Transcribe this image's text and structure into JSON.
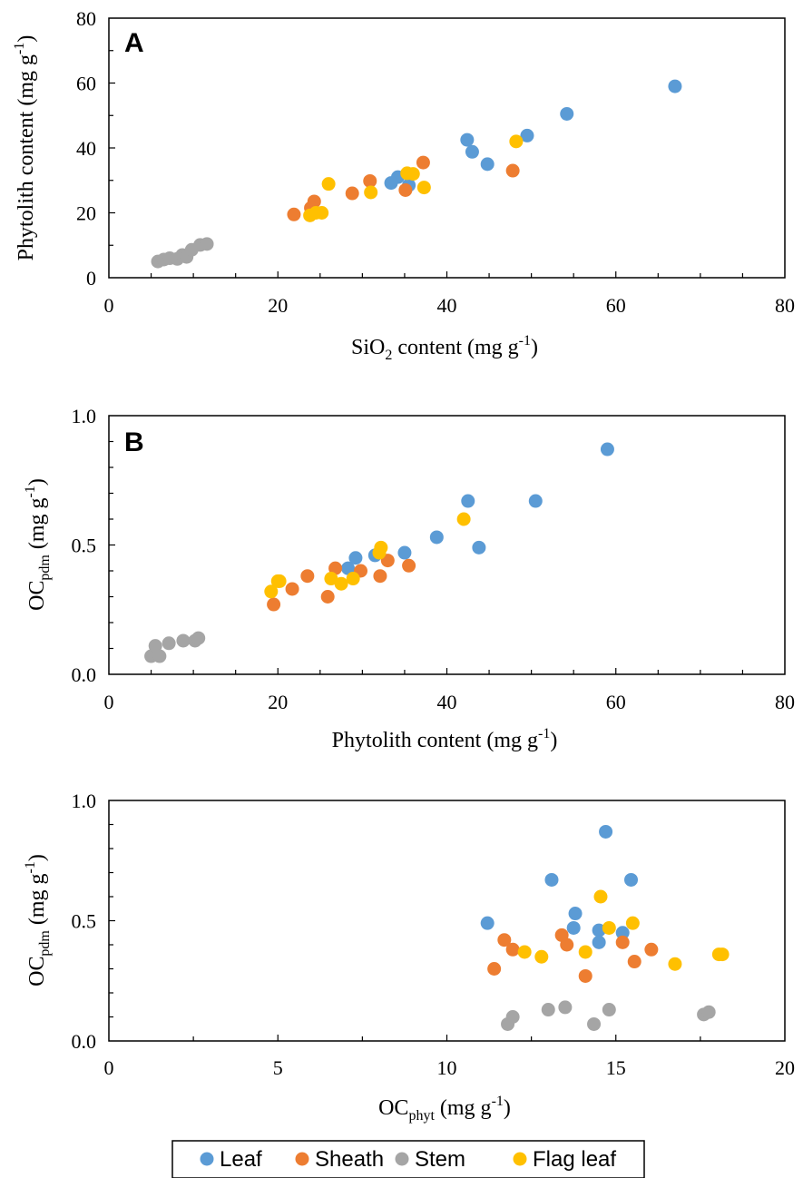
{
  "chart_data": [
    {
      "type": "scatter",
      "panel_label": "A",
      "xlabel": {
        "main": "SiO",
        "sub": "2",
        "rest": " content (mg g",
        "sup": "-1",
        "end": ")"
      },
      "ylabel": {
        "main": "Phytolith content (mg g",
        "sup": "-1",
        "end": ")"
      },
      "xlim": [
        0,
        80
      ],
      "ylim": [
        0,
        80
      ],
      "xticks": [
        0,
        20,
        40,
        60,
        80
      ],
      "yticks": [
        0,
        20,
        40,
        60,
        80
      ],
      "xtick_labels": [
        "0",
        "20",
        "40",
        "60",
        "80"
      ],
      "ytick_labels": [
        "0",
        "20",
        "40",
        "60",
        "80"
      ],
      "x_minor_step": 5,
      "y_minor_step": 10,
      "grid": false,
      "series": [
        {
          "name": "Leaf",
          "color": "#5B9BD5",
          "points": [
            [
              67,
              59
            ],
            [
              54.2,
              50.5
            ],
            [
              49.5,
              43.8
            ],
            [
              42.4,
              42.5
            ],
            [
              43,
              38.8
            ],
            [
              44.8,
              35
            ],
            [
              34.2,
              31
            ],
            [
              33.4,
              29.2
            ],
            [
              35.5,
              28.5
            ]
          ]
        },
        {
          "name": "Sheath",
          "color": "#ED7D31",
          "points": [
            [
              37.2,
              35.5
            ],
            [
              47.8,
              33
            ],
            [
              30.9,
              29.8
            ],
            [
              28.8,
              26
            ],
            [
              35.1,
              27
            ],
            [
              24.3,
              23.5
            ],
            [
              23.9,
              21.5
            ],
            [
              21.9,
              19.5
            ]
          ]
        },
        {
          "name": "Stem",
          "color": "#A5A5A5",
          "points": [
            [
              5.8,
              5
            ],
            [
              6.5,
              5.6
            ],
            [
              7.2,
              6
            ],
            [
              8.1,
              5.8
            ],
            [
              8.7,
              7
            ],
            [
              9.2,
              6.4
            ],
            [
              9.8,
              8.6
            ],
            [
              10.8,
              10.1
            ],
            [
              11.6,
              10.4
            ]
          ]
        },
        {
          "name": "Flag leaf",
          "color": "#FFC000",
          "points": [
            [
              48.2,
              42
            ],
            [
              35.3,
              32.2
            ],
            [
              36,
              32
            ],
            [
              26,
              28.9
            ],
            [
              37.3,
              27.8
            ],
            [
              31,
              26.3
            ],
            [
              23.8,
              19.2
            ],
            [
              24.5,
              20
            ],
            [
              25.2,
              20
            ]
          ]
        }
      ]
    },
    {
      "type": "scatter",
      "panel_label": "B",
      "xlabel": {
        "main": "Phytolith content (mg g",
        "sup": "-1",
        "end": ")"
      },
      "ylabel": {
        "main": "OC",
        "sub": "pdm",
        "rest": " (mg g",
        "sup": "-1",
        "end": ")"
      },
      "xlim": [
        0,
        80
      ],
      "ylim": [
        0,
        1
      ],
      "xticks": [
        0,
        20,
        40,
        60,
        80
      ],
      "yticks": [
        0,
        0.5,
        1
      ],
      "xtick_labels": [
        "0",
        "20",
        "40",
        "60",
        "80"
      ],
      "ytick_labels": [
        "0.0",
        "0.5",
        "1.0"
      ],
      "x_minor_step": 5,
      "y_minor_step": 0.1,
      "grid": false,
      "series": [
        {
          "name": "Leaf",
          "color": "#5B9BD5",
          "points": [
            [
              59,
              0.87
            ],
            [
              42.5,
              0.67
            ],
            [
              50.5,
              0.67
            ],
            [
              38.8,
              0.53
            ],
            [
              43.8,
              0.49
            ],
            [
              35,
              0.47
            ],
            [
              31.5,
              0.46
            ],
            [
              29.2,
              0.45
            ],
            [
              28.3,
              0.41
            ]
          ]
        },
        {
          "name": "Sheath",
          "color": "#ED7D31",
          "points": [
            [
              35.5,
              0.42
            ],
            [
              33,
              0.44
            ],
            [
              26.8,
              0.41
            ],
            [
              29.8,
              0.4
            ],
            [
              32.1,
              0.38
            ],
            [
              23.5,
              0.38
            ],
            [
              21.7,
              0.33
            ],
            [
              25.9,
              0.3
            ],
            [
              19.5,
              0.27
            ]
          ]
        },
        {
          "name": "Stem",
          "color": "#A5A5A5",
          "points": [
            [
              5,
              0.07
            ],
            [
              5.5,
              0.11
            ],
            [
              6,
              0.07
            ],
            [
              7.1,
              0.12
            ],
            [
              8.8,
              0.13
            ],
            [
              10.2,
              0.13
            ],
            [
              10.6,
              0.14
            ]
          ]
        },
        {
          "name": "Flag leaf",
          "color": "#FFC000",
          "points": [
            [
              42,
              0.6
            ],
            [
              32.2,
              0.49
            ],
            [
              32,
              0.47
            ],
            [
              27.5,
              0.35
            ],
            [
              28.9,
              0.37
            ],
            [
              26.3,
              0.37
            ],
            [
              19.2,
              0.32
            ],
            [
              20,
              0.36
            ],
            [
              20.2,
              0.36
            ]
          ]
        }
      ]
    },
    {
      "type": "scatter",
      "panel_label": "",
      "xlabel": {
        "main": "OC",
        "sub": "phyt",
        "rest": " (mg g",
        "sup": "-1",
        "end": ")"
      },
      "ylabel": {
        "main": "OC",
        "sub": "pdm",
        "rest": " (mg g",
        "sup": "-1",
        "end": ")"
      },
      "xlim": [
        0,
        20
      ],
      "ylim": [
        0,
        1
      ],
      "xticks": [
        0,
        5,
        10,
        15,
        20
      ],
      "yticks": [
        0,
        0.5,
        1
      ],
      "xtick_labels": [
        "0",
        "5",
        "10",
        "15",
        "20"
      ],
      "ytick_labels": [
        "0.0",
        "0.5",
        "1.0"
      ],
      "x_minor_step": 2.5,
      "y_minor_step": 0.1,
      "grid": false,
      "series": [
        {
          "name": "Leaf",
          "color": "#5B9BD5",
          "points": [
            [
              14.7,
              0.87
            ],
            [
              13.1,
              0.67
            ],
            [
              15.45,
              0.67
            ],
            [
              13.8,
              0.53
            ],
            [
              11.2,
              0.49
            ],
            [
              13.75,
              0.47
            ],
            [
              14.5,
              0.46
            ],
            [
              15.2,
              0.45
            ],
            [
              14.5,
              0.41
            ]
          ]
        },
        {
          "name": "Sheath",
          "color": "#ED7D31",
          "points": [
            [
              11.7,
              0.42
            ],
            [
              13.4,
              0.44
            ],
            [
              15.2,
              0.41
            ],
            [
              13.55,
              0.4
            ],
            [
              11.95,
              0.38
            ],
            [
              16.05,
              0.38
            ],
            [
              15.55,
              0.33
            ],
            [
              11.4,
              0.3
            ],
            [
              14.1,
              0.27
            ]
          ]
        },
        {
          "name": "Stem",
          "color": "#A5A5A5",
          "points": [
            [
              11.8,
              0.07
            ],
            [
              11.95,
              0.1
            ],
            [
              13,
              0.13
            ],
            [
              13.5,
              0.14
            ],
            [
              14.35,
              0.07
            ],
            [
              14.8,
              0.13
            ],
            [
              17.6,
              0.11
            ],
            [
              17.75,
              0.12
            ]
          ]
        },
        {
          "name": "Flag leaf",
          "color": "#FFC000",
          "points": [
            [
              14.55,
              0.6
            ],
            [
              15.5,
              0.49
            ],
            [
              14.8,
              0.47
            ],
            [
              12.3,
              0.37
            ],
            [
              14.1,
              0.37
            ],
            [
              12.8,
              0.35
            ],
            [
              16.75,
              0.32
            ],
            [
              18.05,
              0.36
            ],
            [
              18.15,
              0.36
            ]
          ]
        }
      ]
    }
  ],
  "legend": {
    "items": [
      {
        "label": "Leaf",
        "color": "#5B9BD5"
      },
      {
        "label": "Sheath",
        "color": "#ED7D31"
      },
      {
        "label": "Stem",
        "color": "#A5A5A5"
      },
      {
        "label": "Flag leaf",
        "color": "#FFC000"
      }
    ]
  }
}
